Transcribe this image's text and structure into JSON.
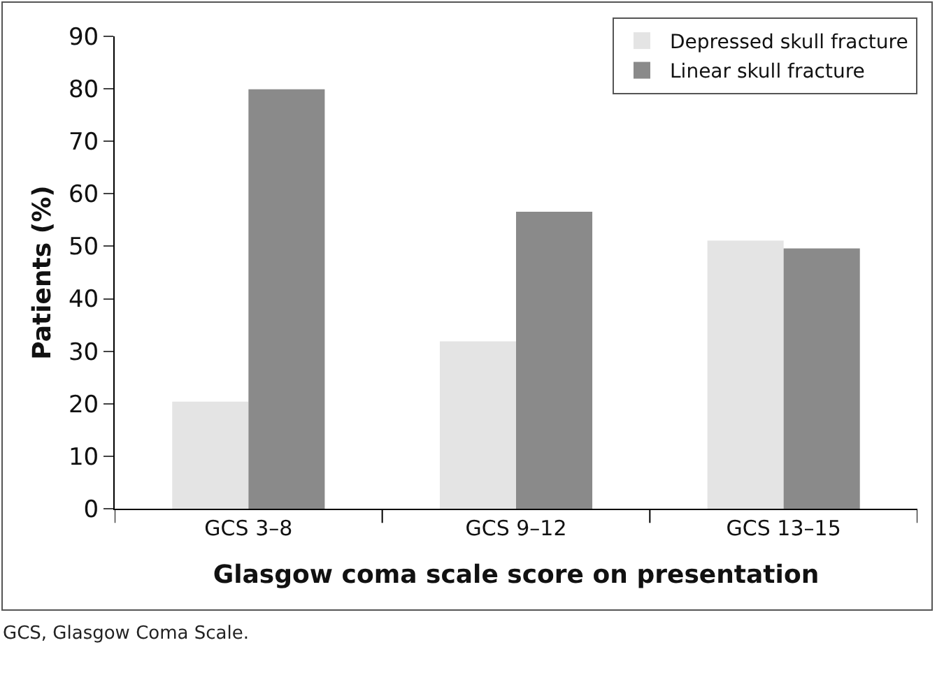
{
  "chart_data": {
    "type": "bar",
    "xlabel": "Glasgow coma scale score on presentation",
    "ylabel": "Patients (%)",
    "categories": [
      "GCS 3–8",
      "GCS 9–12",
      "GCS 13–15"
    ],
    "series": [
      {
        "name": "Depressed skull fracture",
        "color": "#e4e4e4",
        "values": [
          20.4,
          31.9,
          51.1
        ]
      },
      {
        "name": "Linear skull fracture",
        "color": "#8a8a8a",
        "values": [
          79.9,
          56.6,
          49.6
        ]
      }
    ],
    "ylim": [
      0,
      90
    ],
    "yticks": [
      0,
      10,
      20,
      30,
      40,
      50,
      60,
      70,
      80,
      90
    ],
    "grid": false,
    "legend": "top right",
    "annotations": [
      "GCS, Glasgow Coma Scale."
    ]
  }
}
